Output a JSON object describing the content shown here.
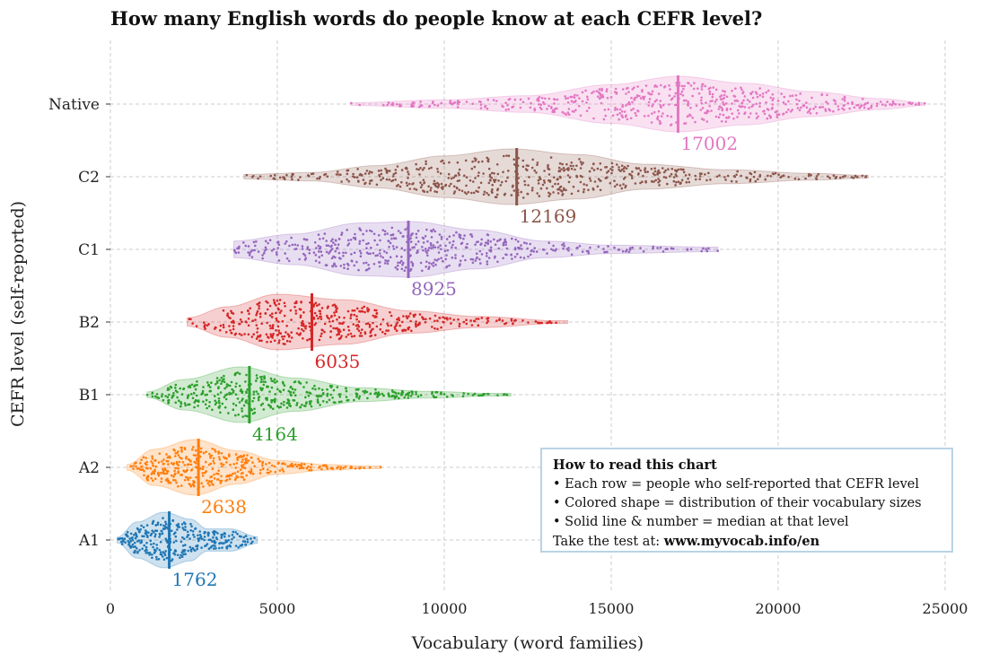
{
  "chart_data": {
    "type": "violin+swarm",
    "title": "How many English words do people know at each CEFR level?",
    "xlabel": "Vocabulary (word families)",
    "ylabel": "CEFR level (self-reported)",
    "xlim": [
      0,
      25000
    ],
    "xticks": [
      "0",
      "5000",
      "10000",
      "15000",
      "20000",
      "25000"
    ],
    "grid": true,
    "series": [
      {
        "name": "Native",
        "color": "#e377c2",
        "median": 17002,
        "median_label": "17002",
        "min": 7200,
        "max": 24400,
        "density": [
          [
            7200,
            0.05
          ],
          [
            10000,
            0.15
          ],
          [
            12500,
            0.3
          ],
          [
            15000,
            0.7
          ],
          [
            17000,
            1.0
          ],
          [
            19000,
            0.75
          ],
          [
            21000,
            0.45
          ],
          [
            23000,
            0.2
          ],
          [
            24400,
            0.05
          ]
        ]
      },
      {
        "name": "C2",
        "color": "#8c564b",
        "median": 12169,
        "median_label": "12169",
        "min": 4000,
        "max": 22700,
        "density": [
          [
            4000,
            0.08
          ],
          [
            6000,
            0.15
          ],
          [
            8000,
            0.4
          ],
          [
            10000,
            0.75
          ],
          [
            12000,
            1.0
          ],
          [
            14000,
            0.8
          ],
          [
            16000,
            0.45
          ],
          [
            18500,
            0.25
          ],
          [
            21000,
            0.12
          ],
          [
            22700,
            0.05
          ]
        ]
      },
      {
        "name": "C1",
        "color": "#9467bd",
        "median": 8925,
        "median_label": "8925",
        "min": 3700,
        "max": 18200,
        "density": [
          [
            3700,
            0.3
          ],
          [
            5500,
            0.55
          ],
          [
            7500,
            0.95
          ],
          [
            9000,
            1.0
          ],
          [
            11000,
            0.7
          ],
          [
            13000,
            0.3
          ],
          [
            15000,
            0.15
          ],
          [
            18200,
            0.08
          ]
        ]
      },
      {
        "name": "B2",
        "color": "#d62728",
        "median": 6035,
        "median_label": "6035",
        "min": 2300,
        "max": 13700,
        "density": [
          [
            2300,
            0.15
          ],
          [
            3500,
            0.55
          ],
          [
            5000,
            1.0
          ],
          [
            7000,
            0.8
          ],
          [
            9000,
            0.4
          ],
          [
            11000,
            0.2
          ],
          [
            13700,
            0.03
          ]
        ]
      },
      {
        "name": "B1",
        "color": "#2ca02c",
        "median": 4164,
        "median_label": "4164",
        "min": 1100,
        "max": 12000,
        "density": [
          [
            1100,
            0.1
          ],
          [
            2200,
            0.55
          ],
          [
            3900,
            1.0
          ],
          [
            5500,
            0.6
          ],
          [
            7500,
            0.25
          ],
          [
            9500,
            0.12
          ],
          [
            12000,
            0.02
          ]
        ]
      },
      {
        "name": "A2",
        "color": "#ff7f0e",
        "median": 2638,
        "median_label": "2638",
        "min": 500,
        "max": 8100,
        "density": [
          [
            500,
            0.1
          ],
          [
            1300,
            0.65
          ],
          [
            2500,
            1.0
          ],
          [
            3800,
            0.6
          ],
          [
            5000,
            0.25
          ],
          [
            6500,
            0.1
          ],
          [
            8100,
            0.02
          ]
        ]
      },
      {
        "name": "A1",
        "color": "#1f77b4",
        "median": 1762,
        "median_label": "1762",
        "min": 200,
        "max": 4400,
        "density": [
          [
            200,
            0.1
          ],
          [
            800,
            0.65
          ],
          [
            1600,
            1.0
          ],
          [
            2400,
            0.75
          ],
          [
            2900,
            0.4
          ],
          [
            3600,
            0.4
          ],
          [
            4400,
            0.12
          ]
        ]
      }
    ]
  },
  "legend_box": {
    "heading": "How to read this chart",
    "lines": [
      "• Each row = people who self-reported that CEFR level",
      "• Colored shape = distribution of their vocabulary sizes",
      "• Solid line & number = median at that level"
    ],
    "cta_prefix": "Take the test at: ",
    "cta_url": "www.myvocab.info/en"
  }
}
